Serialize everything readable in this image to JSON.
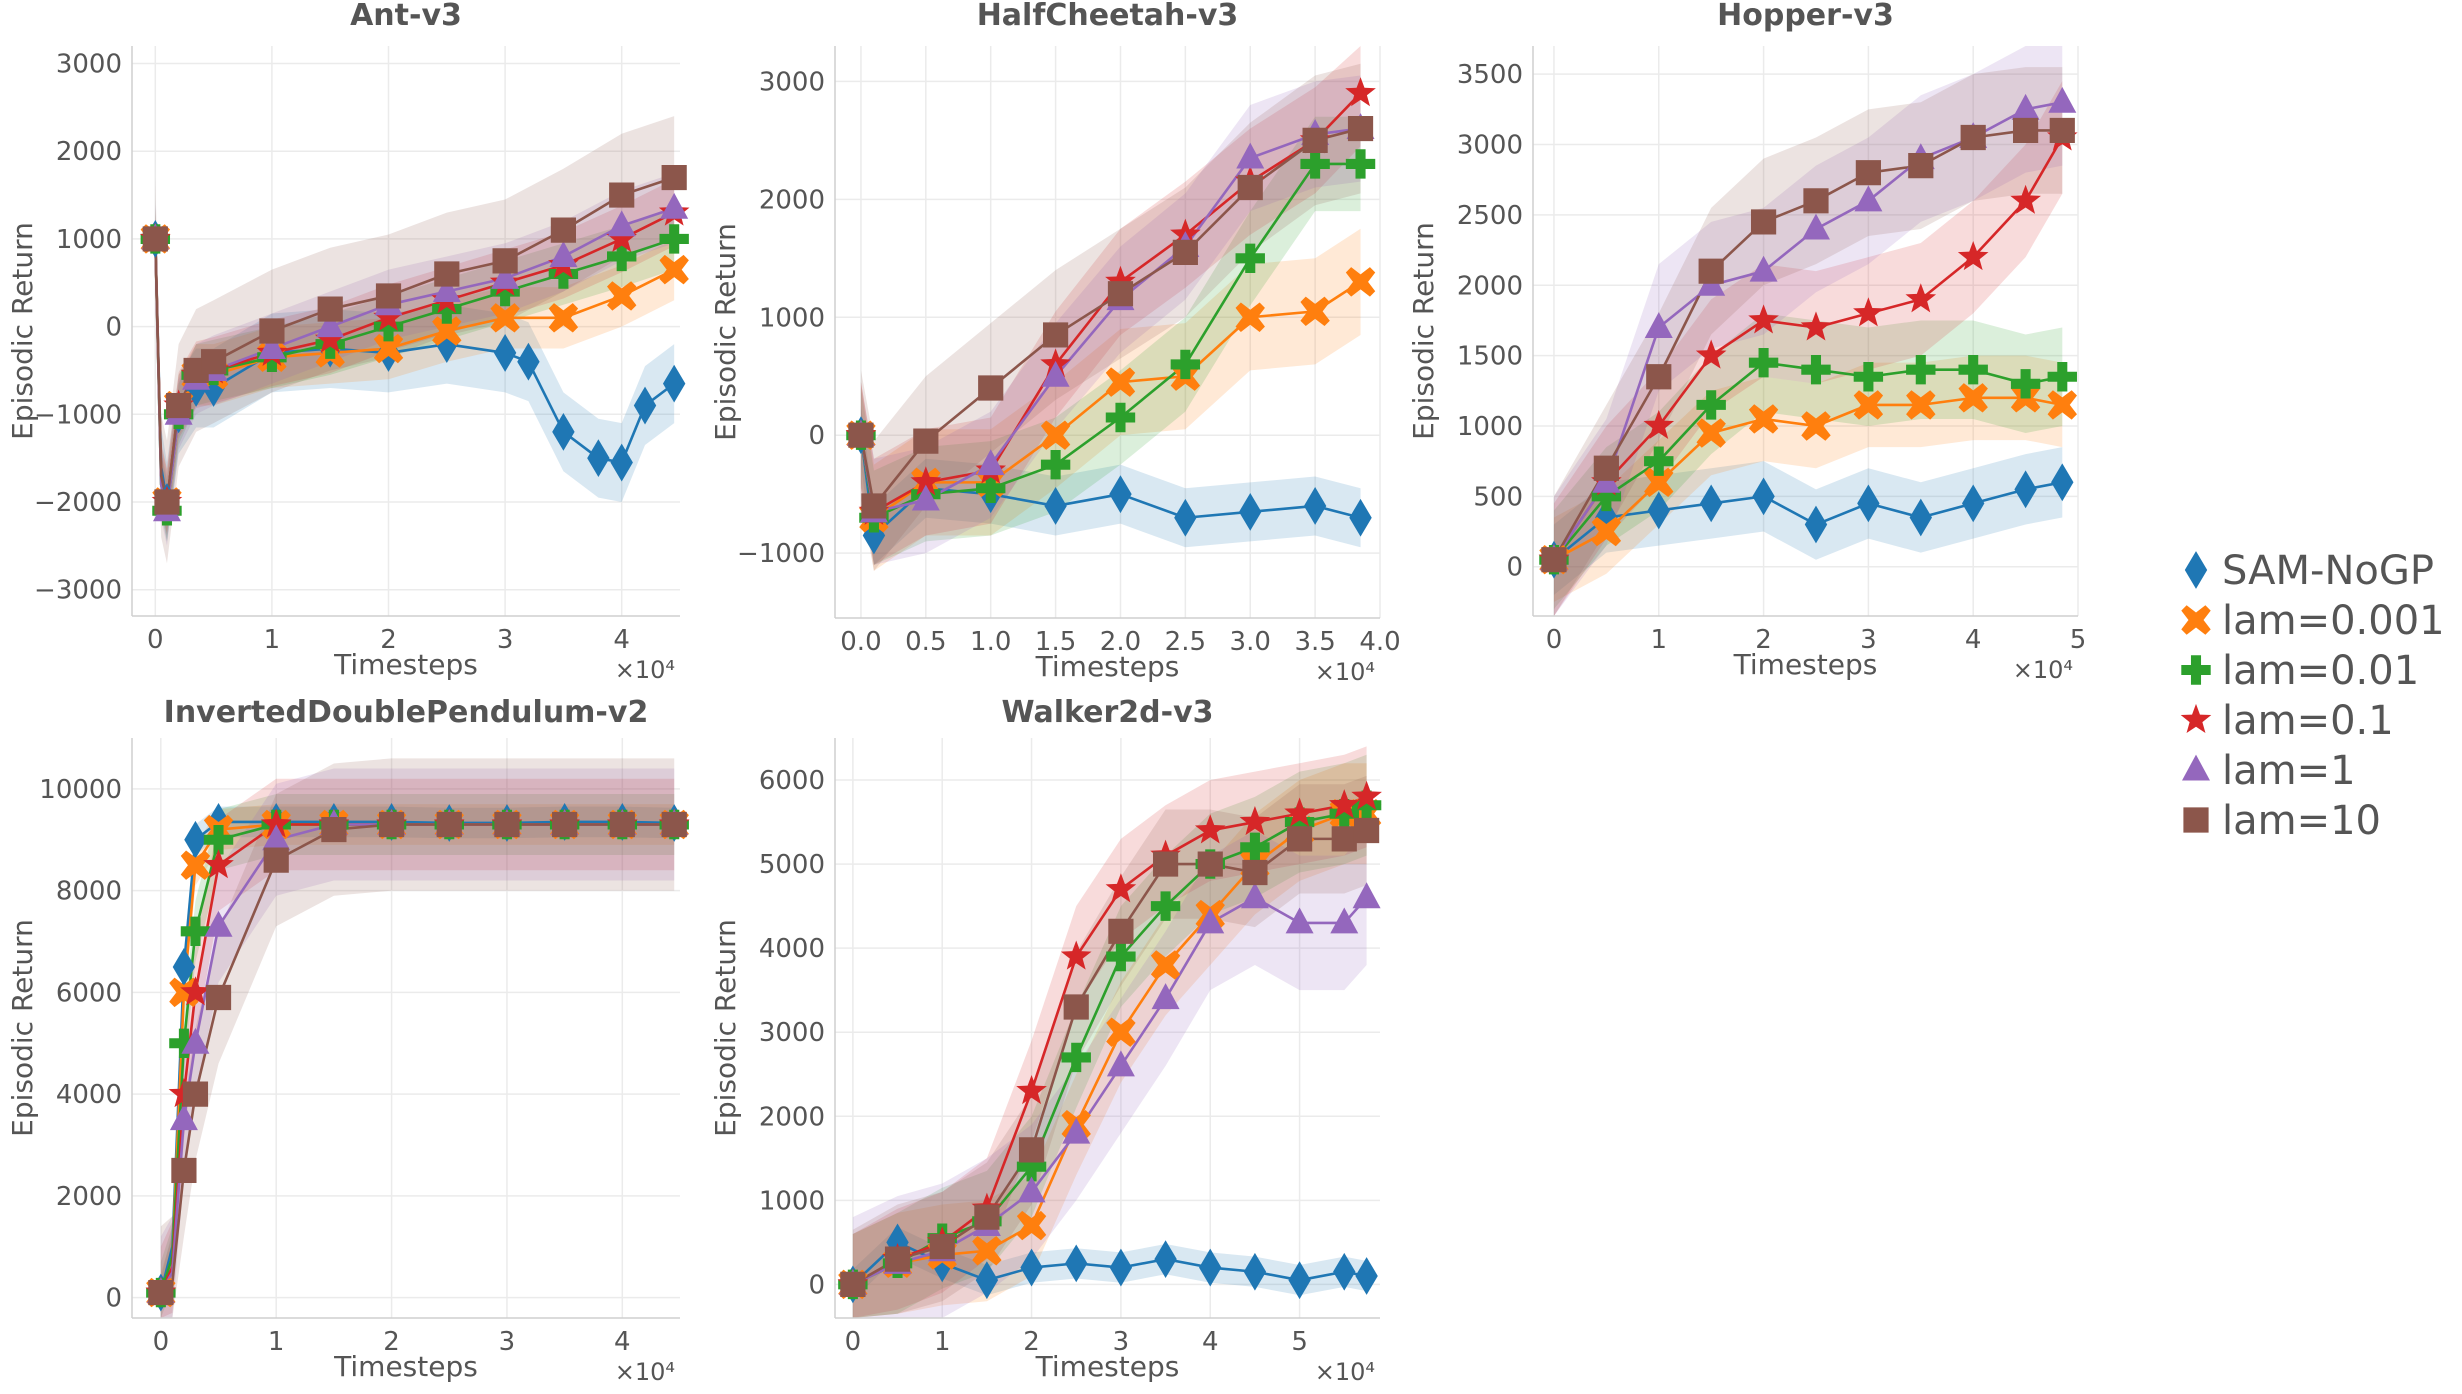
{
  "figure": {
    "x_multiplier": "×10⁴",
    "x_label": "Timesteps",
    "y_label": "Episodic Return"
  },
  "legend": [
    {
      "label": "SAM-NoGP",
      "color": "#1f77b4",
      "marker": "diamond"
    },
    {
      "label": "lam=0.001",
      "color": "#ff7f0e",
      "marker": "x"
    },
    {
      "label": "lam=0.01",
      "color": "#2ca02c",
      "marker": "plus"
    },
    {
      "label": "lam=0.1",
      "color": "#d62728",
      "marker": "star"
    },
    {
      "label": "lam=1",
      "color": "#9467bd",
      "marker": "triangle"
    },
    {
      "label": "lam=10",
      "color": "#8c564b",
      "marker": "square"
    }
  ],
  "chart_data": [
    {
      "type": "line",
      "title": "Ant-v3",
      "xlabel": "Timesteps",
      "ylabel": "Episodic Return",
      "x_multiplier": "×10⁴",
      "xlim": [
        -0.2,
        4.5
      ],
      "ylim": [
        -3300,
        3200
      ],
      "xticks": [
        0,
        1,
        2,
        3,
        4
      ],
      "yticks": [
        -3000,
        -2000,
        -1000,
        0,
        1000,
        2000,
        3000
      ],
      "series": [
        {
          "name": "SAM-NoGP",
          "x": [
            0,
            0.05,
            0.1,
            0.2,
            0.35,
            0.5,
            1,
            1.5,
            2,
            2.5,
            3,
            3.2,
            3.5,
            3.8,
            4,
            4.2,
            4.45
          ],
          "y": [
            1000,
            -1600,
            -2000,
            -1000,
            -700,
            -700,
            -300,
            -250,
            -300,
            -200,
            -300,
            -400,
            -1200,
            -1500,
            -1550,
            -900,
            -650
          ],
          "band": 450
        },
        {
          "name": "lam=0.001",
          "x": [
            0,
            0.05,
            0.1,
            0.2,
            0.35,
            0.5,
            1,
            1.5,
            2,
            2.5,
            3,
            3.5,
            4,
            4.45
          ],
          "y": [
            1000,
            -1700,
            -2000,
            -900,
            -550,
            -550,
            -350,
            -300,
            -250,
            -50,
            100,
            100,
            350,
            650
          ],
          "band": 350
        },
        {
          "name": "lam=0.01",
          "x": [
            0,
            0.05,
            0.1,
            0.2,
            0.35,
            0.5,
            1,
            1.5,
            2,
            2.5,
            3,
            3.5,
            4,
            4.45
          ],
          "y": [
            1000,
            -1800,
            -2100,
            -1000,
            -550,
            -500,
            -350,
            -200,
            0,
            200,
            400,
            600,
            800,
            1000
          ],
          "band": 350
        },
        {
          "name": "lam=0.1",
          "x": [
            0,
            0.05,
            0.1,
            0.2,
            0.35,
            0.5,
            1,
            1.5,
            2,
            2.5,
            3,
            3.5,
            4,
            4.45
          ],
          "y": [
            1000,
            -1700,
            -2000,
            -900,
            -550,
            -500,
            -300,
            -150,
            100,
            300,
            500,
            700,
            1000,
            1300
          ],
          "band": 380
        },
        {
          "name": "lam=1",
          "x": [
            0,
            0.05,
            0.1,
            0.2,
            0.35,
            0.5,
            1,
            1.5,
            2,
            2.5,
            3,
            3.5,
            4,
            4.45
          ],
          "y": [
            1000,
            -1800,
            -2100,
            -1000,
            -600,
            -500,
            -250,
            0,
            250,
            400,
            550,
            800,
            1150,
            1350
          ],
          "band": 400
        },
        {
          "name": "lam=10",
          "x": [
            0,
            0.05,
            0.1,
            0.2,
            0.35,
            0.5,
            1,
            1.5,
            2,
            2.5,
            3,
            3.5,
            4,
            4.45
          ],
          "y": [
            1000,
            -1700,
            -2000,
            -900,
            -500,
            -400,
            -50,
            200,
            350,
            600,
            750,
            1100,
            1500,
            1700
          ],
          "band": 700
        }
      ]
    },
    {
      "type": "line",
      "title": "HalfCheetah-v3",
      "xlabel": "Timesteps",
      "ylabel": "Episodic Return",
      "x_multiplier": "×10⁴",
      "xlim": [
        -0.2,
        4.0
      ],
      "ylim": [
        -1550,
        3300
      ],
      "xticks": [
        0.0,
        0.5,
        1.0,
        1.5,
        2.0,
        2.5,
        3.0,
        3.5,
        4.0
      ],
      "xticklabels": [
        "0.0",
        "0.5",
        "1.0",
        "1.5",
        "2.0",
        "2.5",
        "3.0",
        "3.5",
        "4.0"
      ],
      "yticks": [
        -1000,
        0,
        1000,
        2000,
        3000
      ],
      "series": [
        {
          "name": "SAM-NoGP",
          "x": [
            0,
            0.1,
            0.5,
            1.0,
            1.5,
            2.0,
            2.5,
            3.0,
            3.5,
            3.85
          ],
          "y": [
            0,
            -850,
            -450,
            -500,
            -600,
            -500,
            -700,
            -650,
            -600,
            -700
          ],
          "band": 250
        },
        {
          "name": "lam=0.001",
          "x": [
            0,
            0.1,
            0.5,
            1.0,
            1.5,
            2.0,
            2.5,
            3.0,
            3.5,
            3.85
          ],
          "y": [
            0,
            -700,
            -400,
            -400,
            0,
            450,
            500,
            1000,
            1050,
            1300
          ],
          "band": 450
        },
        {
          "name": "lam=0.01",
          "x": [
            0,
            0.1,
            0.5,
            1.0,
            1.5,
            2.0,
            2.5,
            3.0,
            3.5,
            3.85
          ],
          "y": [
            0,
            -700,
            -500,
            -450,
            -250,
            150,
            600,
            1500,
            2300,
            2300
          ],
          "band": 400
        },
        {
          "name": "lam=0.1",
          "x": [
            0,
            0.1,
            0.5,
            1.0,
            1.5,
            2.0,
            2.5,
            3.0,
            3.5,
            3.85
          ],
          "y": [
            0,
            -650,
            -400,
            -300,
            600,
            1300,
            1700,
            2150,
            2500,
            2900
          ],
          "band": 450
        },
        {
          "name": "lam=1",
          "x": [
            0,
            0.1,
            0.5,
            1.0,
            1.5,
            2.0,
            2.5,
            3.0,
            3.5,
            3.85
          ],
          "y": [
            0,
            -650,
            -550,
            -250,
            500,
            1150,
            1600,
            2350,
            2550,
            2600
          ],
          "band": 450
        },
        {
          "name": "lam=10",
          "x": [
            0,
            0.1,
            0.5,
            1.0,
            1.5,
            2.0,
            2.5,
            3.0,
            3.5,
            3.85
          ],
          "y": [
            0,
            -600,
            -50,
            400,
            850,
            1200,
            1550,
            2100,
            2500,
            2600
          ],
          "band": 550
        }
      ]
    },
    {
      "type": "line",
      "title": "Hopper-v3",
      "xlabel": "Timesteps",
      "ylabel": "Episodic Return",
      "x_multiplier": "×10⁴",
      "xlim": [
        -0.2,
        5.0
      ],
      "ylim": [
        -350,
        3700
      ],
      "xticks": [
        0,
        1,
        2,
        3,
        4,
        5
      ],
      "yticks": [
        0,
        500,
        1000,
        1500,
        2000,
        2500,
        3000,
        3500
      ],
      "series": [
        {
          "name": "SAM-NoGP",
          "x": [
            0,
            0.5,
            1.0,
            1.5,
            2.0,
            2.5,
            3.0,
            3.5,
            4.0,
            4.5,
            4.85
          ],
          "y": [
            50,
            350,
            400,
            450,
            500,
            300,
            450,
            350,
            450,
            550,
            600
          ],
          "band": 250
        },
        {
          "name": "lam=0.001",
          "x": [
            0,
            0.5,
            1.0,
            1.5,
            2.0,
            2.5,
            3.0,
            3.5,
            4.0,
            4.5,
            4.85
          ],
          "y": [
            50,
            250,
            600,
            950,
            1050,
            1000,
            1150,
            1150,
            1200,
            1200,
            1150
          ],
          "band": 300
        },
        {
          "name": "lam=0.01",
          "x": [
            0,
            0.5,
            1.0,
            1.5,
            2.0,
            2.5,
            3.0,
            3.5,
            4.0,
            4.5,
            4.85
          ],
          "y": [
            50,
            500,
            750,
            1150,
            1450,
            1400,
            1350,
            1400,
            1400,
            1300,
            1350
          ],
          "band": 350
        },
        {
          "name": "lam=0.1",
          "x": [
            0,
            0.5,
            1.0,
            1.5,
            2.0,
            2.5,
            3.0,
            3.5,
            4.0,
            4.5,
            4.85
          ],
          "y": [
            50,
            600,
            1000,
            1500,
            1750,
            1700,
            1800,
            1900,
            2200,
            2600,
            3050
          ],
          "band": 400
        },
        {
          "name": "lam=1",
          "x": [
            0,
            0.5,
            1.0,
            1.5,
            2.0,
            2.5,
            3.0,
            3.5,
            4.0,
            4.5,
            4.85
          ],
          "y": [
            50,
            600,
            1700,
            2000,
            2100,
            2400,
            2600,
            2900,
            3050,
            3250,
            3300
          ],
          "band": 450
        },
        {
          "name": "lam=10",
          "x": [
            0,
            0.5,
            1.0,
            1.5,
            2.0,
            2.5,
            3.0,
            3.5,
            4.0,
            4.5,
            4.85
          ],
          "y": [
            50,
            700,
            1350,
            2100,
            2450,
            2600,
            2800,
            2850,
            3050,
            3100,
            3100
          ],
          "band": 450
        }
      ]
    },
    {
      "type": "line",
      "title": "InvertedDoublePendulum-v2",
      "xlabel": "Timesteps",
      "ylabel": "Episodic Return",
      "x_multiplier": "×10⁴",
      "xlim": [
        -0.25,
        4.5
      ],
      "ylim": [
        -400,
        11000
      ],
      "xticks": [
        0,
        1,
        2,
        3,
        4
      ],
      "yticks": [
        0,
        2000,
        4000,
        6000,
        8000,
        10000
      ],
      "series": [
        {
          "name": "SAM-NoGP",
          "x": [
            0,
            0.1,
            0.2,
            0.3,
            0.5,
            1.0,
            1.5,
            2.0,
            2.5,
            3.0,
            3.5,
            4.0,
            4.45
          ],
          "y": [
            100,
            1000,
            6500,
            9000,
            9350,
            9350,
            9350,
            9350,
            9330,
            9330,
            9350,
            9350,
            9330
          ],
          "band": 300
        },
        {
          "name": "lam=0.001",
          "x": [
            0,
            0.1,
            0.2,
            0.3,
            0.5,
            1.0,
            1.5,
            2.0,
            2.5,
            3.0,
            3.5,
            4.0,
            4.45
          ],
          "y": [
            100,
            800,
            6000,
            8500,
            9200,
            9300,
            9300,
            9300,
            9300,
            9300,
            9300,
            9300,
            9300
          ],
          "band": 400
        },
        {
          "name": "lam=0.01",
          "x": [
            0,
            0.1,
            0.2,
            0.3,
            0.5,
            1.0,
            1.5,
            2.0,
            2.5,
            3.0,
            3.5,
            4.0,
            4.45
          ],
          "y": [
            100,
            800,
            5000,
            7200,
            9000,
            9300,
            9300,
            9300,
            9300,
            9300,
            9300,
            9300,
            9300
          ],
          "band": 600
        },
        {
          "name": "lam=0.1",
          "x": [
            0,
            0.1,
            0.2,
            0.3,
            0.5,
            1.0,
            1.5,
            2.0,
            2.5,
            3.0,
            3.5,
            4.0,
            4.45
          ],
          "y": [
            100,
            600,
            4000,
            6000,
            8500,
            9300,
            9300,
            9300,
            9300,
            9300,
            9300,
            9300,
            9300
          ],
          "band": 900
        },
        {
          "name": "lam=1",
          "x": [
            0,
            0.1,
            0.2,
            0.3,
            0.5,
            1.0,
            1.5,
            2.0,
            2.5,
            3.0,
            3.5,
            4.0,
            4.45
          ],
          "y": [
            100,
            500,
            3500,
            5000,
            7300,
            9000,
            9300,
            9300,
            9300,
            9300,
            9300,
            9300,
            9300
          ],
          "band": 1100
        },
        {
          "name": "lam=10",
          "x": [
            0,
            0.1,
            0.2,
            0.3,
            0.5,
            1.0,
            1.5,
            2.0,
            2.5,
            3.0,
            3.5,
            4.0,
            4.45
          ],
          "y": [
            100,
            300,
            2500,
            4000,
            5900,
            8600,
            9200,
            9300,
            9300,
            9300,
            9300,
            9300,
            9300
          ],
          "band": 1300
        }
      ]
    },
    {
      "type": "line",
      "title": "Walker2d-v3",
      "xlabel": "Timesteps",
      "ylabel": "Episodic Return",
      "x_multiplier": "×10⁴",
      "xlim": [
        -0.2,
        5.9
      ],
      "ylim": [
        -400,
        6500
      ],
      "xticks": [
        0,
        1,
        2,
        3,
        4,
        5
      ],
      "yticks": [
        0,
        1000,
        2000,
        3000,
        4000,
        5000,
        6000
      ],
      "series": [
        {
          "name": "SAM-NoGP",
          "x": [
            0,
            0.5,
            1.0,
            1.5,
            2.0,
            2.5,
            3.0,
            3.5,
            4.0,
            4.5,
            5.0,
            5.5,
            5.75
          ],
          "y": [
            0,
            500,
            250,
            50,
            200,
            250,
            200,
            300,
            200,
            150,
            50,
            150,
            100
          ],
          "band": 180
        },
        {
          "name": "lam=0.001",
          "x": [
            0,
            0.5,
            1.0,
            1.5,
            2.0,
            2.5,
            3.0,
            3.5,
            4.0,
            4.5,
            5.0,
            5.5,
            5.75
          ],
          "y": [
            0,
            250,
            350,
            400,
            700,
            1900,
            3000,
            3800,
            4400,
            5000,
            5400,
            5600,
            5600
          ],
          "band": 600
        },
        {
          "name": "lam=0.01",
          "x": [
            0,
            0.5,
            1.0,
            1.5,
            2.0,
            2.5,
            3.0,
            3.5,
            4.0,
            4.5,
            5.0,
            5.5,
            5.75
          ],
          "y": [
            0,
            250,
            550,
            750,
            1400,
            2700,
            3900,
            4500,
            5000,
            5200,
            5500,
            5600,
            5700
          ],
          "band": 600
        },
        {
          "name": "lam=0.1",
          "x": [
            0,
            0.5,
            1.0,
            1.5,
            2.0,
            2.5,
            3.0,
            3.5,
            4.0,
            4.5,
            5.0,
            5.5,
            5.75
          ],
          "y": [
            0,
            300,
            500,
            900,
            2300,
            3900,
            4700,
            5100,
            5400,
            5500,
            5600,
            5700,
            5800
          ],
          "band": 600
        },
        {
          "name": "lam=1",
          "x": [
            0,
            0.5,
            1.0,
            1.5,
            2.0,
            2.5,
            3.0,
            3.5,
            4.0,
            4.5,
            5.0,
            5.5,
            5.75
          ],
          "y": [
            0,
            250,
            400,
            700,
            1100,
            1800,
            2600,
            3400,
            4300,
            4600,
            4300,
            4300,
            4600
          ],
          "band": 800
        },
        {
          "name": "lam=10",
          "x": [
            0,
            0.5,
            1.0,
            1.5,
            2.0,
            2.5,
            3.0,
            3.5,
            4.0,
            4.5,
            5.0,
            5.5,
            5.75
          ],
          "y": [
            0,
            300,
            450,
            800,
            1600,
            3300,
            4200,
            5000,
            5000,
            4900,
            5300,
            5300,
            5400
          ],
          "band": 650
        }
      ]
    }
  ]
}
